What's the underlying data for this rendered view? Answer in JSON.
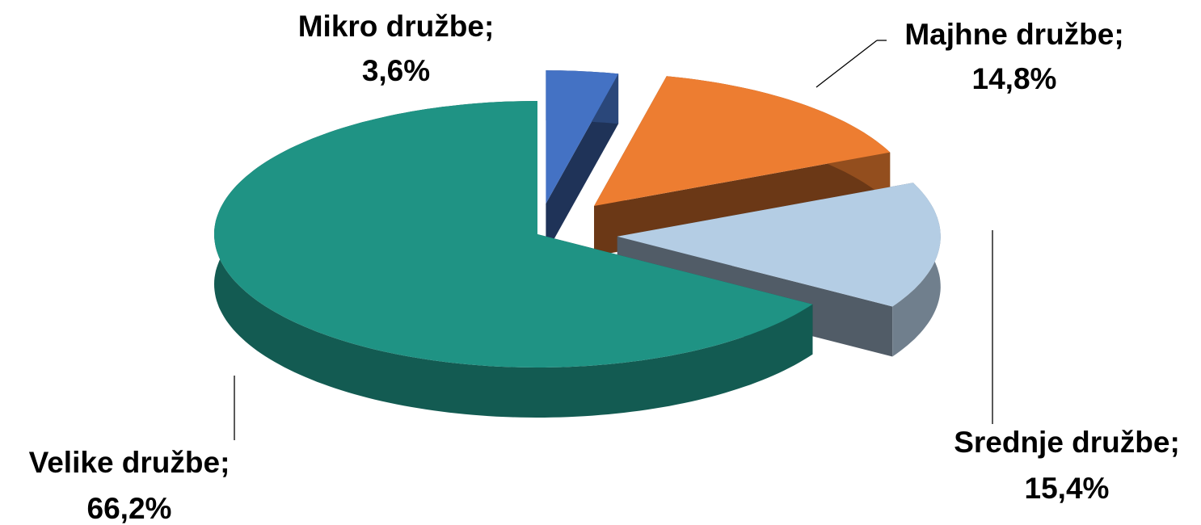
{
  "chart_data": {
    "type": "pie",
    "categories": [
      "Mikro družbe;",
      "Majhne družbe;",
      "Srednje družbe;",
      "Velike družbe;"
    ],
    "values": [
      3.6,
      14.8,
      15.4,
      66.2
    ],
    "value_labels": [
      "3,6%",
      "14,8%",
      "15,4%",
      "66,2%"
    ],
    "colors": [
      "#4472c4",
      "#ed7d31",
      "#b4cde4",
      "#1f9384"
    ]
  }
}
